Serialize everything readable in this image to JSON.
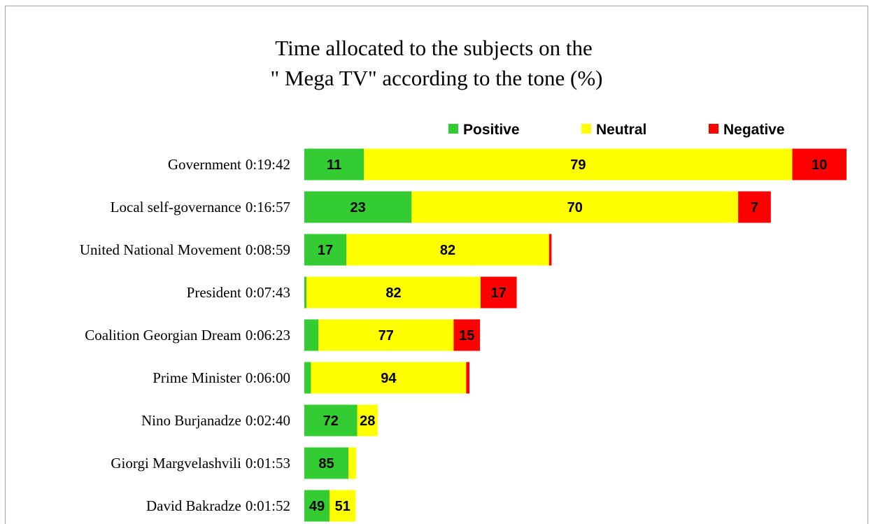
{
  "chart_data": {
    "type": "bar",
    "orientation": "horizontal",
    "stacked": true,
    "title": [
      "Time allocated to the subjects on the",
      "\" Mega TV\" according to the tone (%)"
    ],
    "categories": [
      "Government",
      "Local self-governance",
      "United National Movement",
      "President",
      "Coalition Georgian Dream",
      "Prime Minister",
      "Nino Burjanadze",
      "Giorgi Margvelashvili",
      "David Bakradze"
    ],
    "times": [
      "0:19:42",
      "0:16:57",
      "0:08:59",
      "0:07:43",
      "0:06:23",
      "0:06:00",
      "0:02:40",
      "0:01:53",
      "0:01:52"
    ],
    "series": [
      {
        "name": "Positive",
        "color": "#33cc33",
        "values": [
          11,
          23,
          17,
          1,
          8,
          4,
          72,
          85,
          49
        ]
      },
      {
        "name": "Neutral",
        "color": "#ffff00",
        "values": [
          79,
          70,
          82,
          82,
          77,
          94,
          28,
          15,
          51
        ]
      },
      {
        "name": "Negative",
        "color": "#ff0000",
        "values": [
          10,
          7,
          1,
          17,
          15,
          2,
          0,
          0,
          0
        ]
      }
    ],
    "legend": "top"
  }
}
